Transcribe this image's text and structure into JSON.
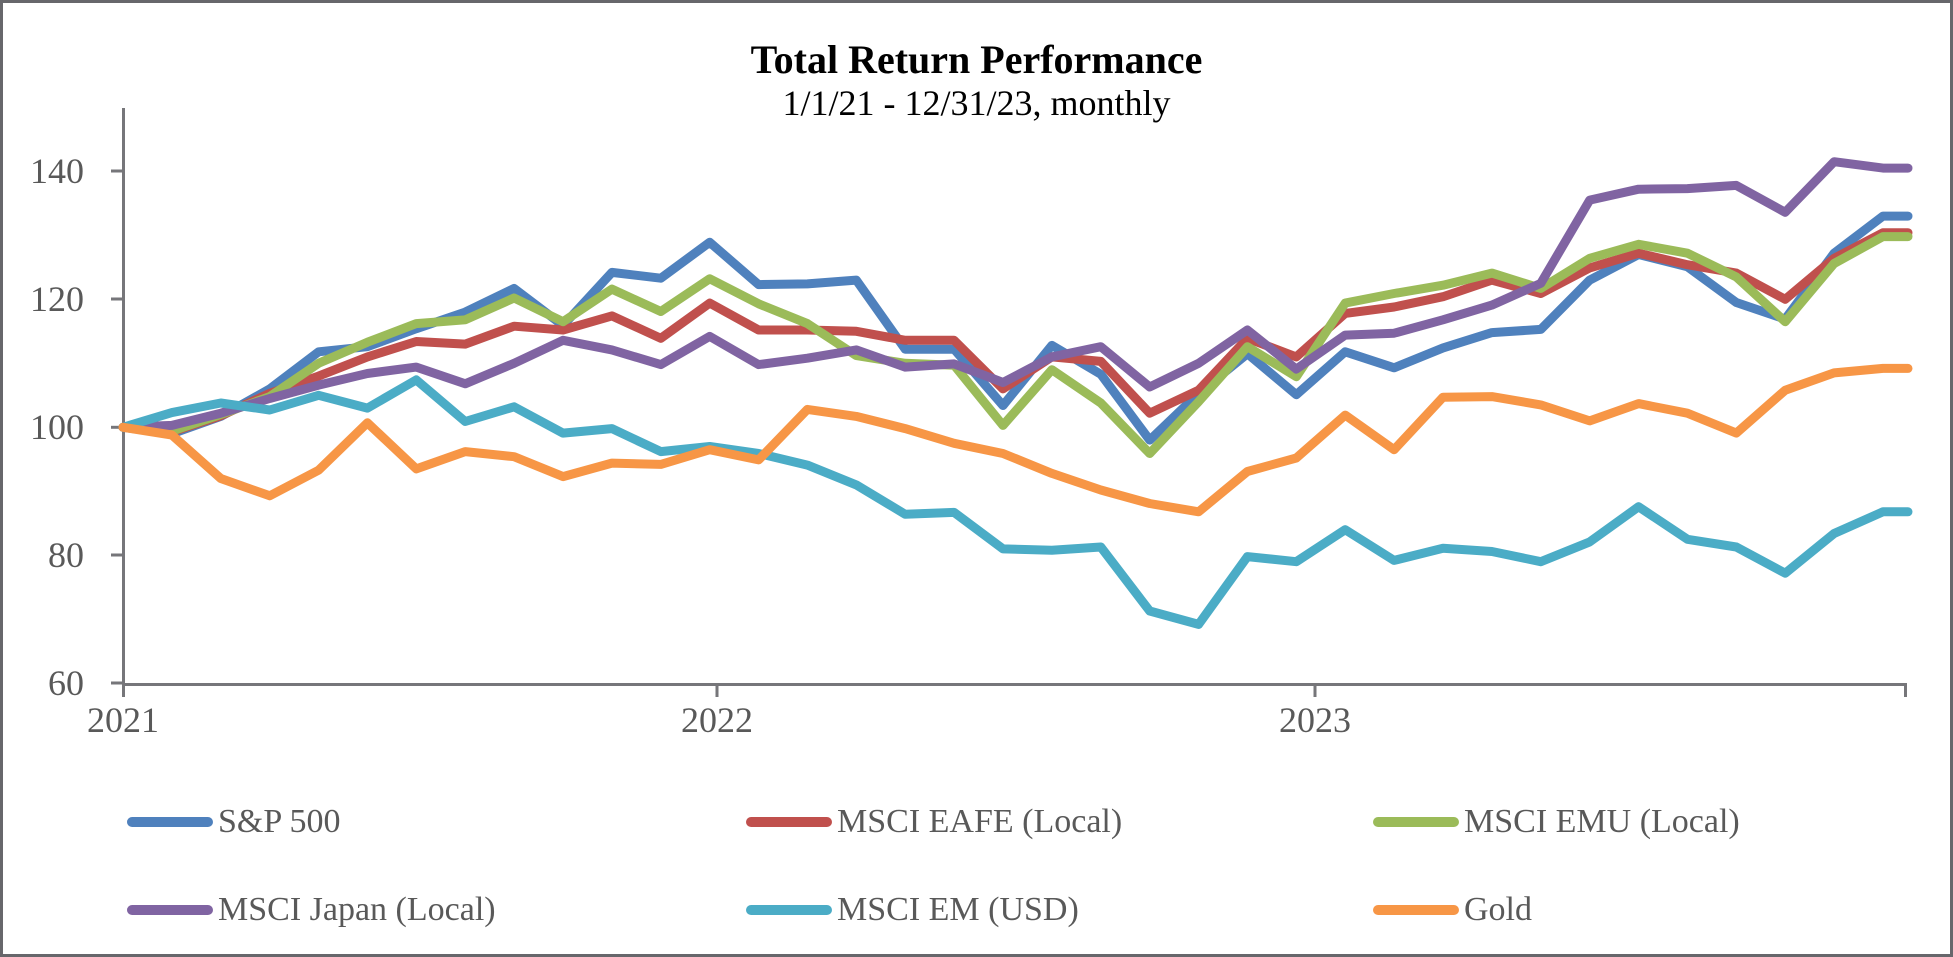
{
  "title": "Total Return Performance",
  "subtitle": "1/1/21 - 12/31/23, monthly",
  "frame": {
    "border_color": "#67676b",
    "background": "#ffffff"
  },
  "axis_style": {
    "line_color": "#76767a",
    "label_color": "#595959"
  },
  "chart_data": {
    "type": "line",
    "title": "Total Return Performance",
    "subtitle": "1/1/21 - 12/31/23, monthly",
    "frequency": "monthly",
    "period_start": "1/1/21",
    "period_end": "12/31/23",
    "index_base": 100,
    "grid": false,
    "legend_position": "bottom",
    "ylim": [
      60,
      150
    ],
    "y_ticks": [
      140,
      120,
      100,
      80,
      60
    ],
    "x_tick_labels": [
      "2021",
      "2022",
      "2023"
    ],
    "x_tick_month_index": [
      0,
      12,
      24
    ],
    "series": [
      {
        "name": "S&P 500",
        "color": "#4F81BD",
        "values": [
          100,
          99.0,
          101.7,
          106.0,
          111.8,
          112.6,
          115.4,
          118.0,
          121.7,
          115.9,
          124.2,
          123.3,
          128.9,
          122.3,
          122.4,
          123.0,
          112.2,
          112.2,
          103.4,
          112.8,
          108.3,
          98.0,
          105.3,
          111.5,
          105.1,
          111.8,
          109.3,
          112.4,
          114.8,
          115.3,
          123.0,
          127.0,
          125.1,
          119.5,
          116.9,
          127.2,
          133.0
        ]
      },
      {
        "name": "MSCI EAFE (Local)",
        "color": "#C0504D",
        "values": [
          100,
          99.3,
          101.8,
          105.3,
          108.0,
          111.0,
          113.4,
          113.0,
          115.8,
          115.2,
          117.4,
          113.9,
          119.4,
          115.2,
          115.2,
          115.0,
          113.6,
          113.6,
          106.0,
          111.0,
          110.3,
          102.2,
          105.8,
          113.9,
          111.0,
          117.8,
          118.8,
          120.4,
          123.0,
          120.9,
          124.9,
          127.2,
          125.4,
          124.1,
          120.0,
          126.4,
          130.4
        ]
      },
      {
        "name": "MSCI EMU (Local)",
        "color": "#9BBB59",
        "values": [
          100,
          99.4,
          102.0,
          104.8,
          110.0,
          113.3,
          116.2,
          116.8,
          120.2,
          116.5,
          121.6,
          118.1,
          123.2,
          119.3,
          116.2,
          111.2,
          110.0,
          109.7,
          100.3,
          109.0,
          103.8,
          95.9,
          104.0,
          112.6,
          107.9,
          119.4,
          120.9,
          122.2,
          124.1,
          121.7,
          126.4,
          128.6,
          127.2,
          123.5,
          116.5,
          125.6,
          129.8
        ]
      },
      {
        "name": "MSCI Japan (Local)",
        "color": "#8064A2",
        "values": [
          100,
          100.3,
          102.2,
          104.5,
          106.6,
          108.4,
          109.4,
          106.8,
          110.0,
          113.6,
          112.1,
          109.8,
          114.2,
          109.8,
          110.8,
          112.1,
          109.4,
          109.9,
          107.0,
          111.0,
          112.6,
          106.3,
          110.0,
          115.2,
          109.1,
          114.4,
          114.7,
          116.8,
          119.1,
          122.5,
          135.5,
          137.2,
          137.3,
          137.8,
          133.6,
          141.5,
          140.5
        ]
      },
      {
        "name": "MSCI EM (USD)",
        "color": "#4BACC6",
        "values": [
          100,
          102.3,
          103.8,
          102.7,
          105.0,
          103.0,
          107.4,
          100.9,
          103.2,
          99.1,
          99.8,
          96.2,
          97.0,
          95.9,
          94.1,
          91.0,
          86.4,
          86.7,
          81.0,
          80.8,
          81.3,
          71.3,
          69.2,
          79.8,
          79.0,
          84.0,
          79.2,
          81.1,
          80.6,
          79.0,
          82.1,
          87.6,
          82.5,
          81.3,
          77.2,
          83.4,
          86.8
        ]
      },
      {
        "name": "Gold",
        "color": "#F79646",
        "values": [
          100,
          98.8,
          92.0,
          89.3,
          93.3,
          100.7,
          93.5,
          96.2,
          95.4,
          92.3,
          94.4,
          94.2,
          96.5,
          94.9,
          102.8,
          101.7,
          99.8,
          97.5,
          95.9,
          92.8,
          90.2,
          88.1,
          86.8,
          93.1,
          95.2,
          101.9,
          96.5,
          104.7,
          104.8,
          103.5,
          101.0,
          103.7,
          102.2,
          99.1,
          105.8,
          108.5,
          109.2
        ]
      }
    ]
  }
}
